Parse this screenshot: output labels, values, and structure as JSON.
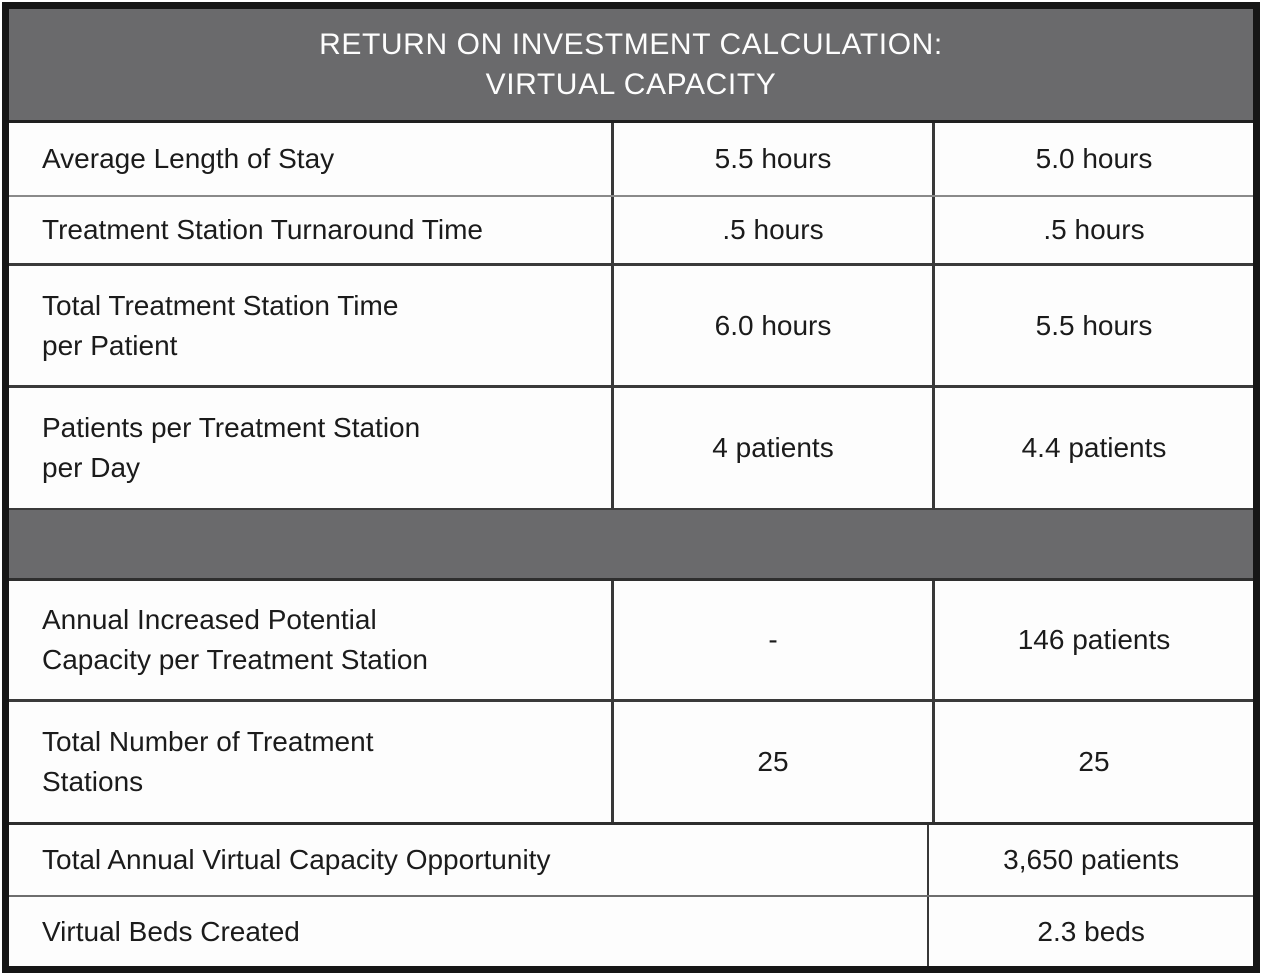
{
  "title": {
    "line1": "RETURN ON INVESTMENT CALCULATION:",
    "line2": "VIRTUAL CAPACITY"
  },
  "colors": {
    "header_bg": "#6a6a6c",
    "separator_band_bg": "#6a6a6c",
    "header_text": "#fdfdfd",
    "body_text": "#1b1b1b",
    "border_dark": "#383838",
    "outer_border": "#161616"
  },
  "rows": [
    {
      "label": "Average Length of Stay",
      "before": "5.5 hours",
      "after": "5.0 hours"
    },
    {
      "label": "Treatment Station Turnaround Time",
      "before": ".5 hours",
      "after": ".5 hours"
    },
    {
      "label": "Total Treatment Station Time\nper Patient",
      "before": "6.0 hours",
      "after": "5.5 hours"
    },
    {
      "label": "Patients per Treatment Station\nper Day",
      "before": "4 patients",
      "after": "4.4 patients"
    },
    {
      "label": "Annual Increased Potential\nCapacity per Treatment Station",
      "before": "-",
      "after": "146 patients"
    },
    {
      "label": "Total Number of Treatment\nStations",
      "before": "25",
      "after": "25"
    }
  ],
  "summary": [
    {
      "label": "Total Annual Virtual Capacity Opportunity",
      "value": "3,650 patients"
    },
    {
      "label": "Virtual Beds Created",
      "value": "2.3 beds"
    }
  ]
}
